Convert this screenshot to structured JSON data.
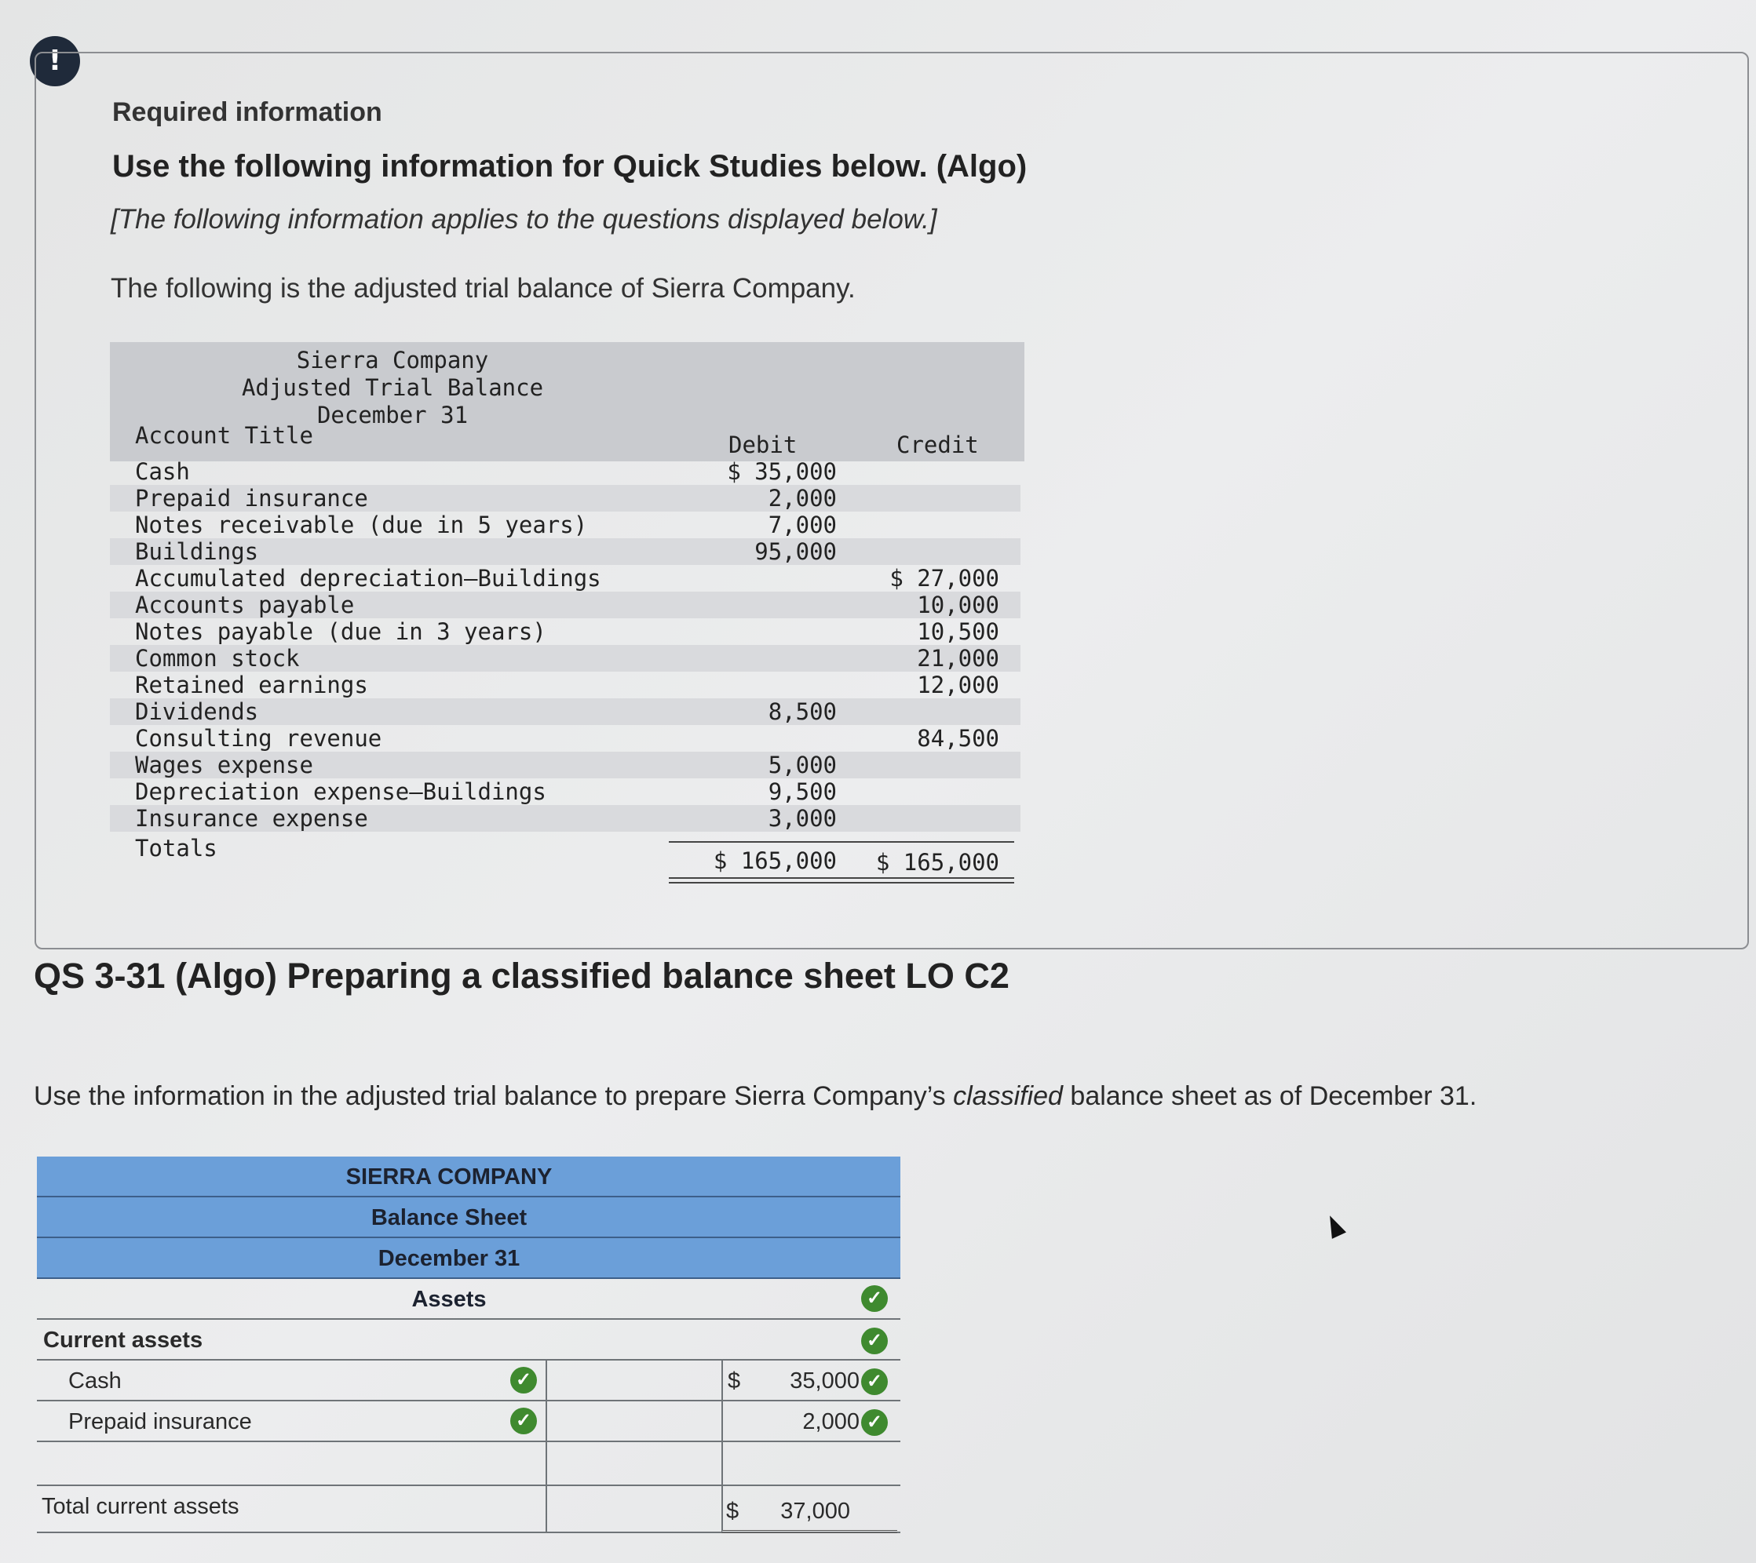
{
  "info": {
    "alert_icon": "exclamation-icon",
    "required": "Required information",
    "title": "Use the following information for Quick Studies below. (Algo)",
    "note": "[The following information applies to the questions displayed below.]",
    "intro": "The following is the adjusted trial balance of Sierra Company."
  },
  "trial_balance": {
    "company": "Sierra Company",
    "report": "Adjusted Trial Balance",
    "date": "December 31",
    "col_account": "Account Title",
    "col_debit": "Debit",
    "col_credit": "Credit",
    "rows": [
      {
        "account": "Cash",
        "debit": "$ 35,000",
        "credit": ""
      },
      {
        "account": "Prepaid insurance",
        "debit": "2,000",
        "credit": ""
      },
      {
        "account": "Notes receivable (due in 5 years)",
        "debit": "7,000",
        "credit": ""
      },
      {
        "account": "Buildings",
        "debit": "95,000",
        "credit": ""
      },
      {
        "account": "Accumulated depreciation—Buildings",
        "debit": "",
        "credit": "$ 27,000"
      },
      {
        "account": "Accounts payable",
        "debit": "",
        "credit": "10,000"
      },
      {
        "account": "Notes payable (due in 3 years)",
        "debit": "",
        "credit": "10,500"
      },
      {
        "account": "Common stock",
        "debit": "",
        "credit": "21,000"
      },
      {
        "account": "Retained earnings",
        "debit": "",
        "credit": "12,000"
      },
      {
        "account": "Dividends",
        "debit": "8,500",
        "credit": ""
      },
      {
        "account": "Consulting revenue",
        "debit": "",
        "credit": "84,500"
      },
      {
        "account": "Wages expense",
        "debit": "5,000",
        "credit": ""
      },
      {
        "account": "Depreciation expense—Buildings",
        "debit": "9,500",
        "credit": ""
      },
      {
        "account": "Insurance expense",
        "debit": "3,000",
        "credit": ""
      }
    ],
    "totals": {
      "label": "Totals",
      "debit": "$ 165,000",
      "credit": "$ 165,000"
    }
  },
  "question": {
    "heading": "QS 3-31 (Algo) Preparing a classified balance sheet LO C2",
    "instr_before": "Use the information in the adjusted trial balance to prepare Sierra Company’s ",
    "instr_em": "classified",
    "instr_after": " balance sheet as of December 31."
  },
  "balance_sheet": {
    "company": "SIERRA COMPANY",
    "report": "Balance Sheet",
    "date": "December 31",
    "section": "Assets",
    "current_assets": "Current assets",
    "cash_label": "Cash",
    "cash_dollar": "$",
    "cash_value": "35,000",
    "prepaid_label": "Prepaid insurance",
    "prepaid_value": "2,000",
    "total_label": "Total current assets",
    "total_dollar": "$",
    "total_value": "37,000",
    "check_icon": "check-circle-icon",
    "check_color": "#3f8a2f",
    "header_color": "#6b9fd9"
  }
}
